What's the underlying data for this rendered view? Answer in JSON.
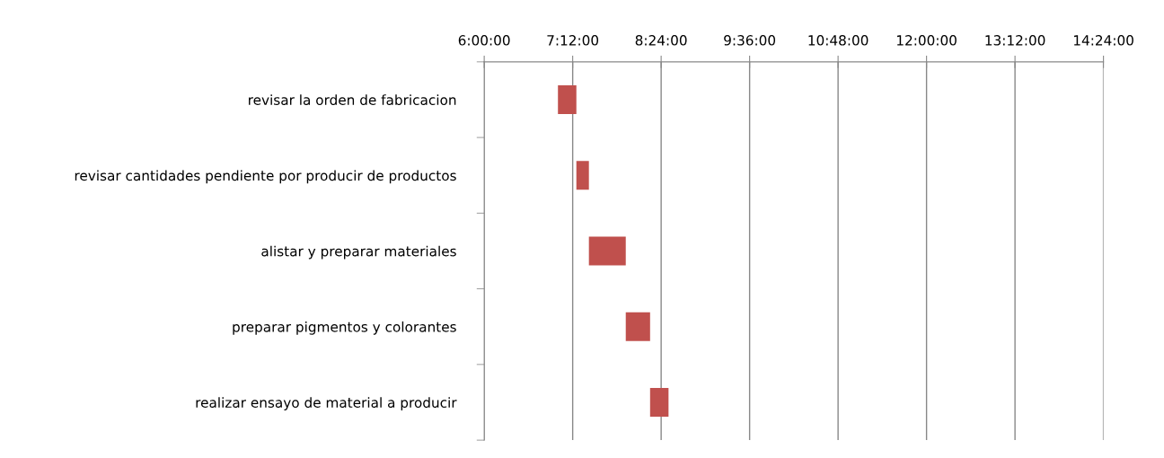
{
  "chart_data": {
    "type": "bar",
    "orientation": "horizontal",
    "categories": [
      "revisar la orden de fabricacion",
      "revisar cantidades pendiente por producir de productos",
      "alistar y preparar materiales",
      "preparar pigmentos y colorantes",
      "realizar ensayo de material a producir"
    ],
    "base": [
      7.0,
      7.25,
      7.42,
      7.92,
      8.25
    ],
    "values": [
      0.25,
      0.17,
      0.5,
      0.33,
      0.25
    ],
    "color": "#c0504d",
    "xlim": [
      6,
      14.4
    ],
    "xticks": [
      {
        "value": 6,
        "label": "6:00:00"
      },
      {
        "value": 7.2,
        "label": "7:12:00"
      },
      {
        "value": 8.4,
        "label": "8:24:00"
      },
      {
        "value": 9.6,
        "label": "9:36:00"
      },
      {
        "value": 10.8,
        "label": "10:48:00"
      },
      {
        "value": 12,
        "label": "12:00:00"
      },
      {
        "value": 13.2,
        "label": "13:12:00"
      },
      {
        "value": 14.4,
        "label": "14:24:00"
      }
    ],
    "grid": "x"
  }
}
